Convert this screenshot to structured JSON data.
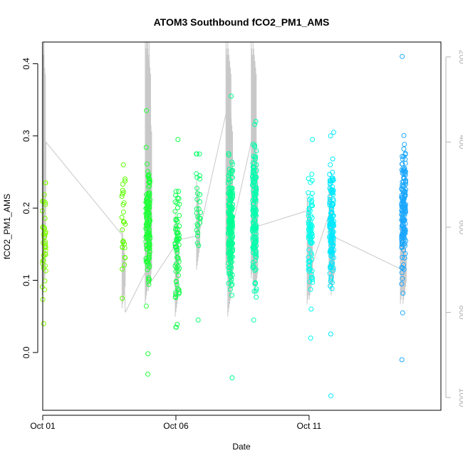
{
  "chart_data": {
    "type": "scatter",
    "title": "ATOM3 Southbound fCO2_PM1_AMS",
    "xlabel": "Date",
    "ylabel": "fCO2_PM1_AMS",
    "xlim": [
      0.0,
      14.95
    ],
    "ylim": [
      -0.08,
      0.43
    ],
    "x_ticks": [
      {
        "label": "Oct 01",
        "value": 0
      },
      {
        "label": "Oct 06",
        "value": 5
      },
      {
        "label": "Oct 11",
        "value": 10
      }
    ],
    "y_ticks": [
      "0.0",
      "0.1",
      "0.2",
      "0.3",
      "0.4"
    ],
    "y2_ticks": [
      "200",
      "400",
      "600",
      "800",
      "1000"
    ],
    "y2_range": [
      1030,
      165
    ],
    "point_clusters": [
      {
        "x": 0.05,
        "n": 40,
        "center": 0.15,
        "spread": 0.045,
        "min": 0.04,
        "max": 0.235,
        "color": "#80ff00"
      },
      {
        "x": 3.05,
        "n": 28,
        "center": 0.18,
        "spread": 0.04,
        "min": 0.075,
        "max": 0.26,
        "color": "#5cff00"
      },
      {
        "x": 3.95,
        "n": 160,
        "center": 0.18,
        "spread": 0.045,
        "min": -0.03,
        "max": 0.335,
        "color": "#22ff3a"
      },
      {
        "x": 5.05,
        "n": 70,
        "center": 0.15,
        "spread": 0.045,
        "min": 0.035,
        "max": 0.295,
        "color": "#11ff4a"
      },
      {
        "x": 5.85,
        "n": 30,
        "center": 0.2,
        "spread": 0.045,
        "min": 0.045,
        "max": 0.275,
        "color": "#0dff6b"
      },
      {
        "x": 7.05,
        "n": 200,
        "center": 0.18,
        "spread": 0.04,
        "min": -0.035,
        "max": 0.355,
        "color": "#00ff94"
      },
      {
        "x": 7.95,
        "n": 150,
        "center": 0.19,
        "spread": 0.045,
        "min": 0.045,
        "max": 0.32,
        "color": "#00ffad"
      },
      {
        "x": 10.05,
        "n": 80,
        "center": 0.17,
        "spread": 0.04,
        "min": 0.02,
        "max": 0.295,
        "color": "#00ffee"
      },
      {
        "x": 10.85,
        "n": 140,
        "center": 0.18,
        "spread": 0.04,
        "min": -0.06,
        "max": 0.305,
        "color": "#00e8ff"
      },
      {
        "x": 13.55,
        "n": 170,
        "center": 0.19,
        "spread": 0.045,
        "min": -0.01,
        "max": 0.41,
        "color": "#1aa7ff"
      }
    ],
    "altitude_trace": {
      "color": "#c8c8c8",
      "path": [
        [
          0.0,
          165
        ],
        [
          0.05,
          165
        ],
        [
          0.1,
          700
        ],
        [
          0.12,
          400
        ],
        [
          3.0,
          620
        ],
        [
          3.05,
          700
        ],
        [
          3.1,
          800
        ],
        [
          3.9,
          700
        ],
        [
          3.95,
          165
        ],
        [
          4.0,
          165
        ],
        [
          4.05,
          730
        ],
        [
          5.0,
          640
        ],
        [
          5.05,
          630
        ],
        [
          5.85,
          620
        ],
        [
          7.0,
          300
        ],
        [
          7.05,
          620
        ],
        [
          7.9,
          380
        ],
        [
          7.95,
          600
        ],
        [
          10.0,
          560
        ],
        [
          10.05,
          700
        ],
        [
          10.8,
          560
        ],
        [
          10.85,
          620
        ],
        [
          13.5,
          700
        ],
        [
          13.6,
          720
        ]
      ],
      "spikes": [
        {
          "x": 0.05,
          "top": 165,
          "bottom": 760
        },
        {
          "x": 3.05,
          "top": 600,
          "bottom": 790
        },
        {
          "x": 3.92,
          "top": 165,
          "bottom": 780
        },
        {
          "x": 3.96,
          "top": 165,
          "bottom": 760
        },
        {
          "x": 4.0,
          "top": 165,
          "bottom": 740
        },
        {
          "x": 4.04,
          "top": 300,
          "bottom": 750
        },
        {
          "x": 5.05,
          "top": 560,
          "bottom": 810
        },
        {
          "x": 5.85,
          "top": 490,
          "bottom": 700
        },
        {
          "x": 6.95,
          "top": 165,
          "bottom": 700
        },
        {
          "x": 7.02,
          "top": 165,
          "bottom": 810
        },
        {
          "x": 7.08,
          "top": 300,
          "bottom": 760
        },
        {
          "x": 7.9,
          "top": 165,
          "bottom": 720
        },
        {
          "x": 7.97,
          "top": 165,
          "bottom": 740
        },
        {
          "x": 8.02,
          "top": 380,
          "bottom": 760
        },
        {
          "x": 10.0,
          "top": 520,
          "bottom": 780
        },
        {
          "x": 10.08,
          "top": 540,
          "bottom": 770
        },
        {
          "x": 10.82,
          "top": 500,
          "bottom": 740
        },
        {
          "x": 10.9,
          "top": 520,
          "bottom": 760
        },
        {
          "x": 13.5,
          "top": 560,
          "bottom": 780
        },
        {
          "x": 13.6,
          "top": 590,
          "bottom": 780
        }
      ]
    }
  }
}
